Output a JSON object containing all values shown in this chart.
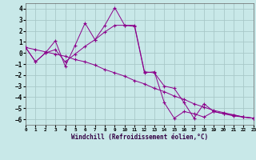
{
  "xlabel": "Windchill (Refroidissement éolien,°C)",
  "xlim": [
    0,
    23
  ],
  "ylim": [
    -6.5,
    4.5
  ],
  "xticks": [
    0,
    1,
    2,
    3,
    4,
    5,
    6,
    7,
    8,
    9,
    10,
    11,
    12,
    13,
    14,
    15,
    16,
    17,
    18,
    19,
    20,
    21,
    22,
    23
  ],
  "yticks": [
    -6,
    -5,
    -4,
    -3,
    -2,
    -1,
    0,
    1,
    2,
    3,
    4
  ],
  "bg_color": "#c8e8e8",
  "line_color": "#8B008B",
  "grid_color": "#a8c8c8",
  "lines": [
    {
      "x": [
        0,
        1,
        2,
        3,
        4,
        5,
        6,
        7,
        8,
        9,
        10,
        11,
        12,
        13,
        14,
        15,
        16,
        17,
        18,
        19,
        20,
        21,
        22,
        23
      ],
      "y": [
        0.5,
        -0.8,
        0.0,
        1.1,
        -1.2,
        0.7,
        2.7,
        1.2,
        2.5,
        4.1,
        2.5,
        2.4,
        -1.8,
        -1.7,
        -4.5,
        -5.9,
        -5.3,
        -5.5,
        -5.8,
        -5.3,
        -5.5,
        -5.7,
        -5.8,
        -5.9
      ]
    },
    {
      "x": [
        0,
        1,
        2,
        3,
        4,
        5,
        6,
        7,
        8,
        9,
        10,
        11,
        12,
        13,
        14,
        15,
        16,
        17,
        18,
        19,
        20,
        21,
        22,
        23
      ],
      "y": [
        0.5,
        -0.8,
        0.0,
        0.3,
        -0.8,
        -0.1,
        0.6,
        1.2,
        1.9,
        2.5,
        2.5,
        2.5,
        -1.7,
        -1.8,
        -3.0,
        -3.2,
        -4.5,
        -5.9,
        -4.6,
        -5.3,
        -5.5,
        -5.6,
        -5.8,
        -5.9
      ]
    },
    {
      "x": [
        0,
        1,
        2,
        3,
        4,
        5,
        6,
        7,
        8,
        9,
        10,
        11,
        12,
        13,
        14,
        15,
        16,
        17,
        18,
        19,
        20,
        21,
        22,
        23
      ],
      "y": [
        0.5,
        0.3,
        0.1,
        -0.1,
        -0.3,
        -0.6,
        -0.8,
        -1.1,
        -1.5,
        -1.8,
        -2.1,
        -2.5,
        -2.8,
        -3.2,
        -3.5,
        -3.9,
        -4.2,
        -4.6,
        -4.9,
        -5.2,
        -5.4,
        -5.6,
        -5.8,
        -5.9
      ]
    }
  ]
}
